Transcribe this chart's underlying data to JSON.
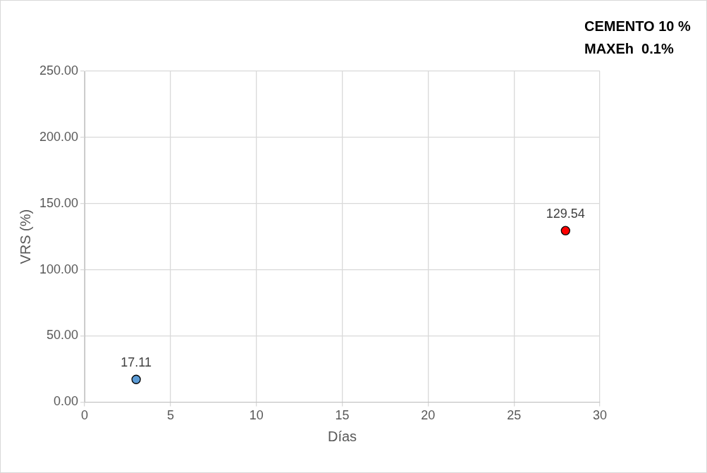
{
  "chart_data": {
    "type": "scatter",
    "xlabel": "Días",
    "ylabel": "VRS (%)",
    "annotations": [
      "CEMENTO 10 %",
      "MAXEh  0.1%"
    ],
    "x": [
      3,
      28
    ],
    "series": [
      {
        "colors": [
          "#5b9bd5",
          "#ff0000"
        ],
        "values": [
          17.11,
          129.54
        ]
      }
    ],
    "data_labels": true,
    "marker": "circle",
    "grid": true,
    "legend": false,
    "xlim": [
      0,
      30
    ],
    "xticks": [
      0,
      5,
      10,
      15,
      20,
      25,
      30
    ],
    "ylim": [
      0,
      250
    ],
    "yticks": [
      {
        "value": 0,
        "label": "0.00"
      },
      {
        "value": 50,
        "label": "50.00"
      },
      {
        "value": 100,
        "label": "100.00"
      },
      {
        "value": 150,
        "label": "150.00"
      },
      {
        "value": 200,
        "label": "200.00"
      },
      {
        "value": 250,
        "label": "250.00"
      }
    ]
  }
}
